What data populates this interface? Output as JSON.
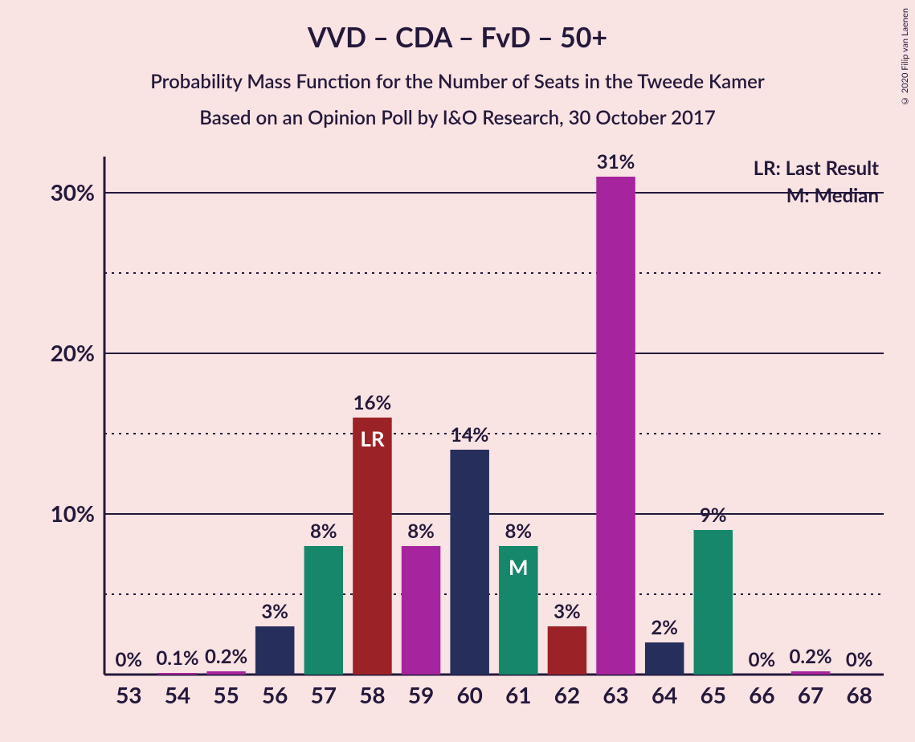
{
  "copyright": "© 2020 Filip van Laenen",
  "title": "VVD – CDA – FvD – 50+",
  "subtitle1": "Probability Mass Function for the Number of Seats in the Tweede Kamer",
  "subtitle2": "Based on an Opinion Poll by I&O Research, 30 October 2017",
  "legend": {
    "lr": "LR: Last Result",
    "m": "M: Median"
  },
  "chart": {
    "type": "bar",
    "background_color": "#fae3e3",
    "axis_color": "#24193b",
    "grid_solid_color": "#24193b",
    "grid_dotted_color": "#24193b",
    "ylim": [
      0,
      32
    ],
    "yticks_major": [
      10,
      20,
      30
    ],
    "yticks_minor": [
      5,
      15,
      25
    ],
    "xticks": [
      53,
      54,
      55,
      56,
      57,
      58,
      59,
      60,
      61,
      62,
      63,
      64,
      65,
      66,
      67,
      68
    ],
    "bar_width": 0.8,
    "label_fontsize": 24,
    "tick_fontsize": 28,
    "title_fontsize": 34,
    "colors": {
      "dark_red": "#9b2226",
      "magenta": "#a6249d",
      "navy": "#262e5c",
      "teal": "#16876a"
    },
    "bars": [
      {
        "x": 53,
        "value": 0,
        "label": "0%",
        "color": "#9b2226",
        "annot": null
      },
      {
        "x": 54,
        "value": 0.1,
        "label": "0.1%",
        "color": "#a6249d",
        "annot": null
      },
      {
        "x": 55,
        "value": 0.2,
        "label": "0.2%",
        "color": "#a6249d",
        "annot": null
      },
      {
        "x": 56,
        "value": 3,
        "label": "3%",
        "color": "#262e5c",
        "annot": null
      },
      {
        "x": 57,
        "value": 8,
        "label": "8%",
        "color": "#16876a",
        "annot": null
      },
      {
        "x": 58,
        "value": 16,
        "label": "16%",
        "color": "#9b2226",
        "annot": "LR"
      },
      {
        "x": 59,
        "value": 8,
        "label": "8%",
        "color": "#a6249d",
        "annot": null
      },
      {
        "x": 60,
        "value": 14,
        "label": "14%",
        "color": "#262e5c",
        "annot": null
      },
      {
        "x": 61,
        "value": 8,
        "label": "8%",
        "color": "#16876a",
        "annot": "M"
      },
      {
        "x": 62,
        "value": 3,
        "label": "3%",
        "color": "#9b2226",
        "annot": null
      },
      {
        "x": 63,
        "value": 31,
        "label": "31%",
        "color": "#a6249d",
        "annot": null
      },
      {
        "x": 64,
        "value": 2,
        "label": "2%",
        "color": "#262e5c",
        "annot": null
      },
      {
        "x": 65,
        "value": 9,
        "label": "9%",
        "color": "#16876a",
        "annot": null
      },
      {
        "x": 66,
        "value": 0,
        "label": "0%",
        "color": "#9b2226",
        "annot": null
      },
      {
        "x": 67,
        "value": 0.2,
        "label": "0.2%",
        "color": "#a6249d",
        "annot": null
      },
      {
        "x": 68,
        "value": 0,
        "label": "0%",
        "color": "#262e5c",
        "annot": null
      }
    ]
  }
}
